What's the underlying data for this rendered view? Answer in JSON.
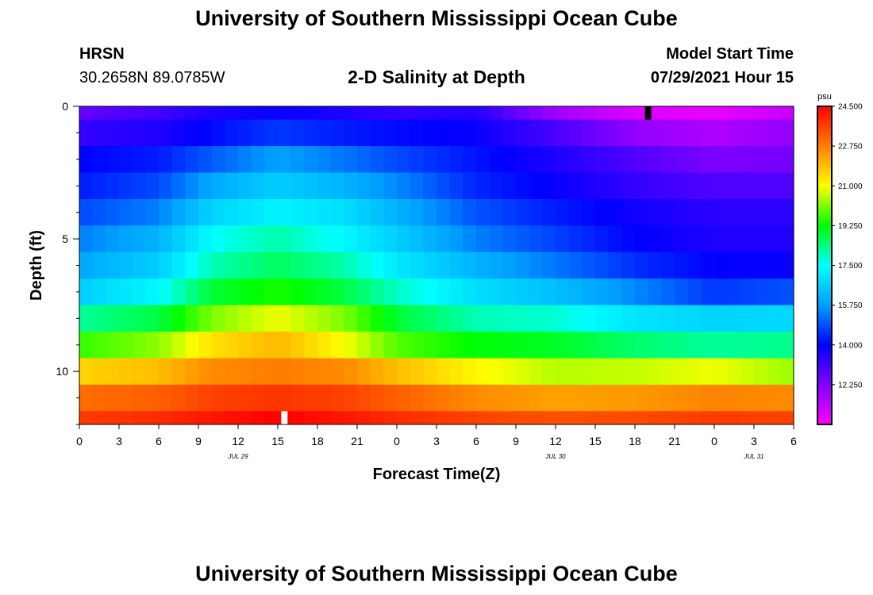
{
  "page": {
    "title_top": "University of Southern Mississippi Ocean Cube",
    "title_bottom": "University of Southern Mississippi Ocean Cube",
    "station_name": "HRSN",
    "station_coords": "30.2658N  89.0785W",
    "plot_title": "2-D Salinity at Depth",
    "model_start_label": "Model Start Time",
    "model_start_value": "07/29/2021 Hour 15"
  },
  "chart_data": {
    "type": "heatmap",
    "title": "2-D Salinity at Depth",
    "xlabel": "Forecast Time(Z)",
    "ylabel": "Depth (ft)",
    "x_range_hours": [
      0,
      54
    ],
    "x_ticks": [
      0,
      3,
      6,
      9,
      12,
      15,
      18,
      21,
      24,
      27,
      30,
      33,
      36,
      39,
      42,
      45,
      48,
      51,
      54
    ],
    "x_tick_labels": [
      "0",
      "3",
      "6",
      "9",
      "12",
      "15",
      "18",
      "21",
      "0",
      "3",
      "6",
      "9",
      "12",
      "15",
      "18",
      "21",
      "0",
      "3",
      "6"
    ],
    "date_labels": [
      {
        "text": "JUL 29",
        "hour": 12
      },
      {
        "text": "JUL 30",
        "hour": 36
      },
      {
        "text": "JUL 31",
        "hour": 51
      }
    ],
    "y_range_ft": [
      0,
      12
    ],
    "y_major_ticks": [
      0,
      5,
      10
    ],
    "y_tick_labels": [
      "0",
      "5",
      "10"
    ],
    "y_minor_step": 1,
    "colorbar": {
      "unit": "psu",
      "min": 10.5,
      "max": 24.5,
      "tick_values": [
        24.5,
        22.75,
        21.0,
        19.25,
        17.5,
        15.75,
        14.0,
        12.25
      ],
      "tick_labels": [
        "24.500",
        "22.750",
        "21.000",
        "19.250",
        "17.500",
        "15.750",
        "14.000",
        "12.250"
      ]
    },
    "row_depth_edges_ft": [
      0,
      0.5,
      1.5,
      2.5,
      3.5,
      4.5,
      5.5,
      6.5,
      7.5,
      8.5,
      9.5,
      10.5,
      11.5,
      12
    ],
    "control_hours": [
      0,
      6,
      10,
      15,
      20,
      24,
      30,
      36,
      42,
      48,
      54
    ],
    "salinity_psu_rows": [
      [
        12.6,
        13.1,
        13.6,
        13.9,
        13.6,
        13.3,
        13.5,
        11.8,
        11.0,
        10.8,
        11.3
      ],
      [
        13.3,
        13.6,
        14.1,
        14.6,
        14.3,
        14.1,
        13.9,
        13.0,
        12.0,
        11.6,
        12.0
      ],
      [
        14.0,
        14.3,
        15.0,
        15.8,
        15.3,
        14.8,
        14.2,
        13.6,
        12.9,
        12.3,
        12.4
      ],
      [
        14.3,
        14.8,
        15.9,
        16.6,
        16.1,
        15.5,
        14.4,
        13.9,
        13.3,
        12.9,
        12.9
      ],
      [
        14.8,
        15.4,
        16.7,
        17.3,
        16.9,
        16.1,
        14.9,
        14.3,
        13.8,
        13.4,
        13.4
      ],
      [
        15.4,
        16.1,
        17.5,
        18.1,
        17.4,
        16.6,
        15.4,
        14.7,
        14.0,
        13.6,
        13.6
      ],
      [
        15.9,
        16.6,
        18.0,
        18.6,
        18.1,
        17.1,
        16.1,
        15.3,
        14.5,
        14.0,
        13.9
      ],
      [
        16.6,
        17.4,
        18.9,
        19.4,
        18.8,
        17.9,
        16.9,
        16.3,
        15.5,
        14.6,
        14.9
      ],
      [
        18.2,
        18.8,
        20.1,
        20.9,
        20.1,
        18.9,
        18.0,
        17.8,
        17.0,
        16.7,
        16.8
      ],
      [
        19.6,
        20.2,
        21.4,
        22.0,
        21.0,
        19.8,
        19.2,
        19.0,
        18.5,
        18.2,
        18.3
      ],
      [
        21.6,
        21.9,
        22.6,
        22.8,
        22.6,
        21.9,
        21.1,
        20.5,
        20.6,
        20.9,
        20.3
      ],
      [
        23.0,
        23.2,
        23.6,
        23.8,
        23.6,
        23.2,
        22.6,
        22.3,
        22.4,
        22.7,
        22.6
      ],
      [
        23.7,
        23.9,
        24.2,
        24.5,
        24.2,
        23.9,
        23.6,
        23.4,
        23.5,
        23.7,
        23.6
      ]
    ],
    "markers": [
      {
        "hour": 15.5,
        "depth_top_ft": 11.5,
        "depth_bottom_ft": 12,
        "color": "#ffffff"
      },
      {
        "hour": 43.0,
        "depth_top_ft": 0,
        "depth_bottom_ft": 0.5,
        "color": "#000000"
      }
    ]
  }
}
